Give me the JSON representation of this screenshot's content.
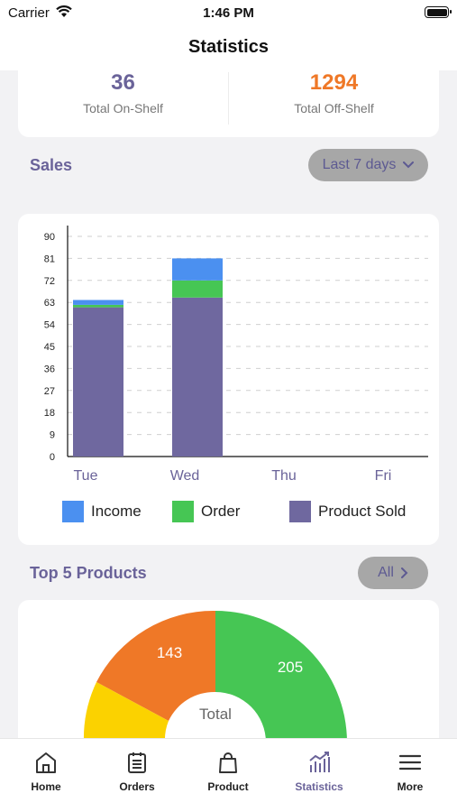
{
  "status_bar": {
    "carrier": "Carrier",
    "time": "1:46 PM"
  },
  "nav": {
    "title": "Statistics"
  },
  "summary": {
    "on_shelf_value": "36",
    "on_shelf_label": "Total On-Shelf",
    "off_shelf_value": "1294",
    "off_shelf_label": "Total Off-Shelf"
  },
  "sales": {
    "title": "Sales",
    "range_label": "Last 7 days"
  },
  "chart_data": {
    "type": "bar",
    "stacked": true,
    "categories": [
      "Tue",
      "Wed",
      "Thu",
      "Fri"
    ],
    "series": [
      {
        "name": "Product Sold",
        "values": [
          61,
          65,
          0,
          0
        ],
        "color": "#6f689f"
      },
      {
        "name": "Order",
        "values": [
          1,
          7,
          0,
          0
        ],
        "color": "#46c654"
      },
      {
        "name": "Income",
        "values": [
          2,
          9,
          0,
          0
        ],
        "color": "#4b90f0"
      }
    ],
    "yticks": [
      "0",
      "9",
      "18",
      "27",
      "36",
      "45",
      "54",
      "63",
      "72",
      "81",
      "90"
    ],
    "ylim": [
      0,
      90
    ],
    "grid": true,
    "legend": "bottom"
  },
  "legend": {
    "income": "Income",
    "order": "Order",
    "product_sold": "Product Sold"
  },
  "top_products": {
    "title": "Top 5 Products",
    "filter_label": "All",
    "donut_center_label": "Total",
    "donut_center_value": "",
    "slices": [
      {
        "label": "205",
        "value": 205,
        "color": "#46c654"
      },
      {
        "label": "143",
        "value": 143,
        "color": "#ef7827"
      },
      {
        "label": "",
        "color": "#fbd200"
      }
    ]
  },
  "tabs": [
    {
      "label": "Home",
      "icon": "home-icon"
    },
    {
      "label": "Orders",
      "icon": "orders-icon"
    },
    {
      "label": "Product",
      "icon": "bag-icon"
    },
    {
      "label": "Statistics",
      "icon": "statistics-icon"
    },
    {
      "label": "More",
      "icon": "menu-icon"
    }
  ]
}
